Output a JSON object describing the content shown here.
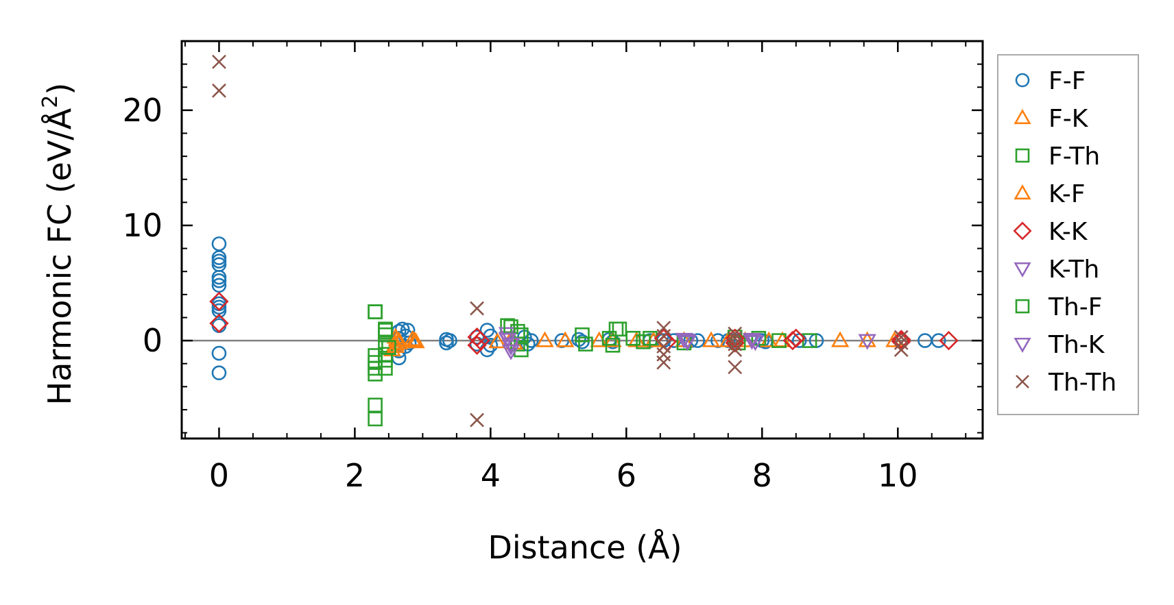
{
  "chart_data": {
    "type": "scatter",
    "xlabel": "Distance (Å)",
    "ylabel_main": "Harmonic FC (eV/Å",
    "ylabel_sup": "2",
    "ylabel_close": ")",
    "xlim": [
      -0.55,
      11.25
    ],
    "ylim": [
      -8.5,
      26
    ],
    "xticks": [
      0,
      2,
      4,
      6,
      8,
      10
    ],
    "xtick_labels": [
      "0",
      "2",
      "4",
      "6",
      "8",
      "10"
    ],
    "yticks": [
      0,
      10,
      20
    ],
    "ytick_labels": [
      "0",
      "10",
      "20"
    ],
    "reference_line_y": 0,
    "legend_position": "outside-right",
    "series": [
      {
        "name": "F-F",
        "marker": "circle",
        "color": "#1f77b4",
        "points": [
          [
            0,
            8.4
          ],
          [
            0,
            7.2
          ],
          [
            0,
            6.9
          ],
          [
            0,
            6.6
          ],
          [
            0,
            5.5
          ],
          [
            0,
            5.2
          ],
          [
            0,
            4.8
          ],
          [
            0,
            3.2
          ],
          [
            0,
            2.9
          ],
          [
            0,
            2.6
          ],
          [
            0,
            1.3
          ],
          [
            0,
            -1.1
          ],
          [
            0,
            -2.8
          ],
          [
            2.65,
            -1.5
          ],
          [
            2.65,
            -0.9
          ],
          [
            2.65,
            0.2
          ],
          [
            2.65,
            0.8
          ],
          [
            2.7,
            1.0
          ],
          [
            2.75,
            -0.5
          ],
          [
            2.75,
            0.4
          ],
          [
            2.78,
            0.9
          ],
          [
            2.8,
            -0.2
          ],
          [
            3.35,
            0.1
          ],
          [
            3.35,
            -0.2
          ],
          [
            3.4,
            0.0
          ],
          [
            3.8,
            0.3
          ],
          [
            3.8,
            -0.3
          ],
          [
            3.95,
            0.9
          ],
          [
            3.95,
            -0.8
          ],
          [
            4.0,
            0.4
          ],
          [
            4.0,
            -0.4
          ],
          [
            4.5,
            0.3
          ],
          [
            4.55,
            -0.3
          ],
          [
            4.6,
            0.0
          ],
          [
            5.05,
            0.0
          ],
          [
            5.3,
            0.1
          ],
          [
            5.35,
            -0.1
          ],
          [
            5.75,
            0.1
          ],
          [
            5.8,
            -0.1
          ],
          [
            6.35,
            0.0
          ],
          [
            6.55,
            0.0
          ],
          [
            6.7,
            0.0
          ],
          [
            6.95,
            0.0
          ],
          [
            7.05,
            0.0
          ],
          [
            7.35,
            0.0
          ],
          [
            7.5,
            0.0
          ],
          [
            7.6,
            0.0
          ],
          [
            8.0,
            0.0
          ],
          [
            8.05,
            -0.1
          ],
          [
            8.55,
            0.0
          ],
          [
            8.8,
            0.0
          ],
          [
            10.05,
            0.0
          ],
          [
            10.4,
            0.0
          ],
          [
            10.6,
            0.0
          ]
        ]
      },
      {
        "name": "F-K",
        "marker": "triangle-up",
        "color": "#ff7f0e",
        "points": [
          [
            2.55,
            -0.8
          ],
          [
            2.6,
            0.3
          ],
          [
            2.6,
            -0.3
          ],
          [
            2.65,
            0.0
          ],
          [
            2.85,
            0.1
          ],
          [
            2.9,
            -0.1
          ],
          [
            4.1,
            -0.1
          ],
          [
            4.3,
            0.1
          ],
          [
            4.35,
            -0.2
          ],
          [
            4.8,
            0.0
          ],
          [
            5.1,
            0.0
          ],
          [
            5.6,
            0.0
          ],
          [
            5.8,
            0.0
          ],
          [
            6.15,
            0.0
          ],
          [
            6.4,
            0.0
          ],
          [
            6.85,
            0.0
          ],
          [
            7.25,
            0.0
          ],
          [
            7.5,
            0.0
          ],
          [
            7.75,
            0.0
          ],
          [
            8.1,
            0.0
          ],
          [
            8.3,
            0.0
          ],
          [
            9.15,
            0.0
          ],
          [
            9.55,
            0.0
          ],
          [
            9.95,
            0.0
          ]
        ]
      },
      {
        "name": "F-Th",
        "marker": "square",
        "color": "#2ca02c",
        "points": [
          [
            2.3,
            2.5
          ],
          [
            2.3,
            -1.3
          ],
          [
            2.3,
            -1.9
          ],
          [
            2.3,
            -2.4
          ],
          [
            2.3,
            -2.9
          ],
          [
            2.3,
            -5.6
          ],
          [
            2.3,
            -6.8
          ],
          [
            2.45,
            1.0
          ],
          [
            2.45,
            0.5
          ],
          [
            2.45,
            -0.4
          ],
          [
            2.45,
            -1.2
          ],
          [
            2.45,
            -1.7
          ],
          [
            2.45,
            -2.4
          ],
          [
            4.25,
            1.3
          ],
          [
            4.4,
            0.8
          ],
          [
            4.4,
            -0.3
          ],
          [
            4.45,
            -0.8
          ],
          [
            5.35,
            0.5
          ],
          [
            5.4,
            -0.3
          ],
          [
            5.75,
            0.2
          ],
          [
            5.8,
            -0.4
          ],
          [
            5.85,
            1.0
          ],
          [
            6.1,
            0.2
          ],
          [
            6.25,
            -0.1
          ],
          [
            6.35,
            0.2
          ],
          [
            6.85,
            -0.2
          ],
          [
            7.6,
            0.3
          ],
          [
            7.65,
            -0.2
          ],
          [
            7.95,
            0.2
          ],
          [
            8.25,
            0.0
          ],
          [
            8.7,
            0.0
          ]
        ]
      },
      {
        "name": "K-F",
        "marker": "triangle-up",
        "color": "#ff7f0e",
        "points": [
          [
            2.6,
            -0.5
          ],
          [
            2.62,
            0.1
          ],
          [
            2.65,
            -0.2
          ],
          [
            2.88,
            0.0
          ]
        ]
      },
      {
        "name": "K-K",
        "marker": "diamond",
        "color": "#d62728",
        "points": [
          [
            0,
            3.4
          ],
          [
            0,
            1.5
          ],
          [
            3.8,
            0.3
          ],
          [
            3.8,
            -0.4
          ],
          [
            3.85,
            0.0
          ],
          [
            6.55,
            0.2
          ],
          [
            6.6,
            -0.1
          ],
          [
            7.6,
            0.2
          ],
          [
            7.6,
            -0.2
          ],
          [
            8.45,
            0.0
          ],
          [
            8.5,
            0.2
          ],
          [
            10.05,
            0.1
          ],
          [
            10.05,
            -0.1
          ],
          [
            10.75,
            0.0
          ]
        ]
      },
      {
        "name": "K-Th",
        "marker": "triangle-down",
        "color": "#9467bd",
        "points": [
          [
            4.25,
            0.6
          ],
          [
            4.25,
            0.2
          ],
          [
            4.3,
            -0.5
          ],
          [
            4.3,
            -0.9
          ],
          [
            6.85,
            0.1
          ],
          [
            6.9,
            -0.1
          ],
          [
            7.85,
            0.1
          ],
          [
            7.9,
            -0.1
          ],
          [
            9.55,
            0.0
          ]
        ]
      },
      {
        "name": "Th-F",
        "marker": "square",
        "color": "#2ca02c",
        "points": [
          [
            2.3,
            2.5
          ],
          [
            2.45,
            0.9
          ],
          [
            2.5,
            -0.6
          ],
          [
            4.3,
            1.2
          ],
          [
            4.45,
            0.5
          ],
          [
            5.9,
            1.0
          ]
        ]
      },
      {
        "name": "Th-K",
        "marker": "triangle-down",
        "color": "#9467bd",
        "points": [
          [
            4.25,
            0.1
          ],
          [
            4.3,
            -0.3
          ],
          [
            6.9,
            0.0
          ],
          [
            7.85,
            0.0
          ]
        ]
      },
      {
        "name": "Th-Th",
        "marker": "x",
        "color": "#8c564b",
        "points": [
          [
            0,
            24.2
          ],
          [
            0,
            21.7
          ],
          [
            3.8,
            2.8
          ],
          [
            3.8,
            -6.9
          ],
          [
            6.55,
            1.1
          ],
          [
            6.55,
            0.4
          ],
          [
            6.55,
            -0.5
          ],
          [
            6.55,
            -1.2
          ],
          [
            6.55,
            -1.9
          ],
          [
            7.6,
            0.6
          ],
          [
            7.6,
            0.2
          ],
          [
            7.6,
            -0.3
          ],
          [
            7.6,
            -0.8
          ],
          [
            7.6,
            -2.3
          ],
          [
            10.05,
            0.3
          ],
          [
            10.05,
            -0.2
          ],
          [
            10.05,
            -0.8
          ]
        ]
      }
    ]
  }
}
